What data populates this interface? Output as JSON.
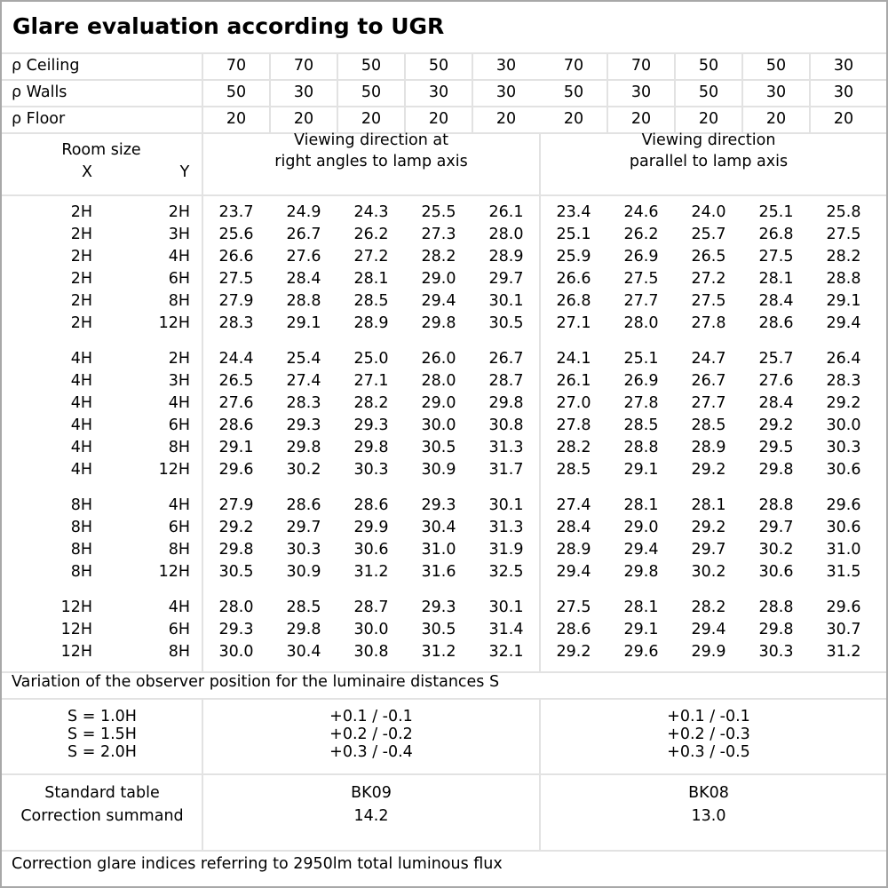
{
  "title": "Glare evaluation according to UGR",
  "reflectances": [
    {
      "label": "ρ Ceiling",
      "values": [
        "70",
        "70",
        "50",
        "50",
        "30",
        "70",
        "70",
        "50",
        "50",
        "30"
      ]
    },
    {
      "label": "ρ Walls",
      "values": [
        "50",
        "30",
        "50",
        "30",
        "30",
        "50",
        "30",
        "50",
        "30",
        "30"
      ]
    },
    {
      "label": "ρ Floor",
      "values": [
        "20",
        "20",
        "20",
        "20",
        "20",
        "20",
        "20",
        "20",
        "20",
        "20"
      ]
    }
  ],
  "header": {
    "room_size": "Room size",
    "x": "X",
    "y": "Y",
    "perpendicular": [
      "Viewing direction at",
      "right angles to lamp axis"
    ],
    "parallel": [
      "Viewing direction",
      "parallel to lamp axis"
    ]
  },
  "groups": [
    {
      "rows": [
        {
          "x": "2H",
          "y": "2H",
          "v": [
            "23.7",
            "24.9",
            "24.3",
            "25.5",
            "26.1",
            "23.4",
            "24.6",
            "24.0",
            "25.1",
            "25.8"
          ]
        },
        {
          "x": "2H",
          "y": "3H",
          "v": [
            "25.6",
            "26.7",
            "26.2",
            "27.3",
            "28.0",
            "25.1",
            "26.2",
            "25.7",
            "26.8",
            "27.5"
          ]
        },
        {
          "x": "2H",
          "y": "4H",
          "v": [
            "26.6",
            "27.6",
            "27.2",
            "28.2",
            "28.9",
            "25.9",
            "26.9",
            "26.5",
            "27.5",
            "28.2"
          ]
        },
        {
          "x": "2H",
          "y": "6H",
          "v": [
            "27.5",
            "28.4",
            "28.1",
            "29.0",
            "29.7",
            "26.6",
            "27.5",
            "27.2",
            "28.1",
            "28.8"
          ]
        },
        {
          "x": "2H",
          "y": "8H",
          "v": [
            "27.9",
            "28.8",
            "28.5",
            "29.4",
            "30.1",
            "26.8",
            "27.7",
            "27.5",
            "28.4",
            "29.1"
          ]
        },
        {
          "x": "2H",
          "y": "12H",
          "v": [
            "28.3",
            "29.1",
            "28.9",
            "29.8",
            "30.5",
            "27.1",
            "28.0",
            "27.8",
            "28.6",
            "29.4"
          ]
        }
      ]
    },
    {
      "rows": [
        {
          "x": "4H",
          "y": "2H",
          "v": [
            "24.4",
            "25.4",
            "25.0",
            "26.0",
            "26.7",
            "24.1",
            "25.1",
            "24.7",
            "25.7",
            "26.4"
          ]
        },
        {
          "x": "4H",
          "y": "3H",
          "v": [
            "26.5",
            "27.4",
            "27.1",
            "28.0",
            "28.7",
            "26.1",
            "26.9",
            "26.7",
            "27.6",
            "28.3"
          ]
        },
        {
          "x": "4H",
          "y": "4H",
          "v": [
            "27.6",
            "28.3",
            "28.2",
            "29.0",
            "29.8",
            "27.0",
            "27.8",
            "27.7",
            "28.4",
            "29.2"
          ]
        },
        {
          "x": "4H",
          "y": "6H",
          "v": [
            "28.6",
            "29.3",
            "29.3",
            "30.0",
            "30.8",
            "27.8",
            "28.5",
            "28.5",
            "29.2",
            "30.0"
          ]
        },
        {
          "x": "4H",
          "y": "8H",
          "v": [
            "29.1",
            "29.8",
            "29.8",
            "30.5",
            "31.3",
            "28.2",
            "28.8",
            "28.9",
            "29.5",
            "30.3"
          ]
        },
        {
          "x": "4H",
          "y": "12H",
          "v": [
            "29.6",
            "30.2",
            "30.3",
            "30.9",
            "31.7",
            "28.5",
            "29.1",
            "29.2",
            "29.8",
            "30.6"
          ]
        }
      ]
    },
    {
      "rows": [
        {
          "x": "8H",
          "y": "4H",
          "v": [
            "27.9",
            "28.6",
            "28.6",
            "29.3",
            "30.1",
            "27.4",
            "28.1",
            "28.1",
            "28.8",
            "29.6"
          ]
        },
        {
          "x": "8H",
          "y": "6H",
          "v": [
            "29.2",
            "29.7",
            "29.9",
            "30.4",
            "31.3",
            "28.4",
            "29.0",
            "29.2",
            "29.7",
            "30.6"
          ]
        },
        {
          "x": "8H",
          "y": "8H",
          "v": [
            "29.8",
            "30.3",
            "30.6",
            "31.0",
            "31.9",
            "28.9",
            "29.4",
            "29.7",
            "30.2",
            "31.0"
          ]
        },
        {
          "x": "8H",
          "y": "12H",
          "v": [
            "30.5",
            "30.9",
            "31.2",
            "31.6",
            "32.5",
            "29.4",
            "29.8",
            "30.2",
            "30.6",
            "31.5"
          ]
        }
      ]
    },
    {
      "rows": [
        {
          "x": "12H",
          "y": "4H",
          "v": [
            "28.0",
            "28.5",
            "28.7",
            "29.3",
            "30.1",
            "27.5",
            "28.1",
            "28.2",
            "28.8",
            "29.6"
          ]
        },
        {
          "x": "12H",
          "y": "6H",
          "v": [
            "29.3",
            "29.8",
            "30.0",
            "30.5",
            "31.4",
            "28.6",
            "29.1",
            "29.4",
            "29.8",
            "30.7"
          ]
        },
        {
          "x": "12H",
          "y": "8H",
          "v": [
            "30.0",
            "30.4",
            "30.8",
            "31.2",
            "32.1",
            "29.2",
            "29.6",
            "29.9",
            "30.3",
            "31.2"
          ]
        }
      ]
    }
  ],
  "variation": {
    "label": "Variation of the observer position for the luminaire distances S",
    "rows": [
      {
        "s": "S = 1.0H",
        "perpendicular": "+0.1 / -0.1",
        "parallel": "+0.1 / -0.1"
      },
      {
        "s": "S = 1.5H",
        "perpendicular": "+0.2 / -0.2",
        "parallel": "+0.2 / -0.3"
      },
      {
        "s": "S = 2.0H",
        "perpendicular": "+0.3 / -0.4",
        "parallel": "+0.3 / -0.5"
      }
    ]
  },
  "standard": {
    "table_label": "Standard table",
    "summand_label": "Correction summand",
    "perpendicular": {
      "table": "BK09",
      "summand": "14.2"
    },
    "parallel": {
      "table": "BK08",
      "summand": "13.0"
    }
  },
  "footer": "Correction glare indices referring to 2950lm total luminous flux",
  "colors": {
    "border": "#a8a8a8",
    "gridline": "#e2e2e2",
    "text": "#000000"
  }
}
